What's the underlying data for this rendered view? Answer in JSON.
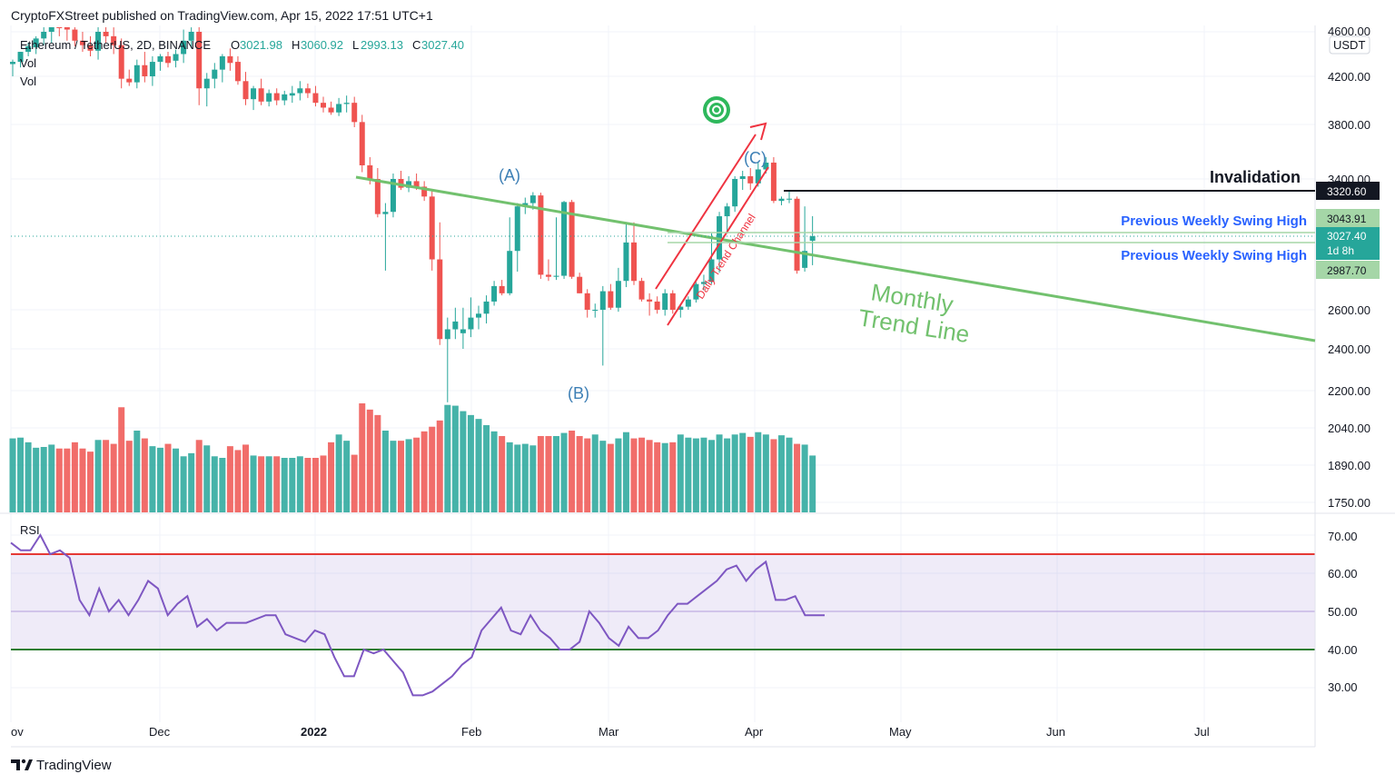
{
  "header": {
    "published": "CryptoFXStreet published on TradingView.com, Apr 15, 2022 17:51 UTC+1",
    "symbol": "Ethereum / TetherUS, 2D, BINANCE",
    "ohlc": {
      "o_label": "O",
      "o": "3021.98",
      "h_label": "H",
      "h": "3060.92",
      "l_label": "L",
      "l": "2993.13",
      "c_label": "C",
      "c": "3027.40"
    },
    "vol1": "Vol",
    "vol2": "Vol",
    "rsi_label": "RSI",
    "currency": "USDT"
  },
  "footer": {
    "brand": "TradingView",
    "logo": "tradingview-logo"
  },
  "price_axis": {
    "ticks": [
      "4600.00",
      "4200.00",
      "3800.00",
      "3400.00",
      "2600.00",
      "2400.00",
      "2200.00",
      "2040.00",
      "1890.00",
      "1750.00"
    ]
  },
  "rsi_axis": {
    "ticks": [
      "70.00",
      "60.00",
      "50.00",
      "40.00",
      "30.00"
    ]
  },
  "x_axis": {
    "ticks": [
      "ov",
      "Dec",
      "2022",
      "Feb",
      "Mar",
      "Apr",
      "May",
      "Jun",
      "Jul"
    ]
  },
  "badges": {
    "invalidation": "3320.60",
    "swing_high_1": "3043.91",
    "current": "3027.40",
    "countdown": "1d 8h",
    "swing_high_2": "2987.70"
  },
  "annotations": {
    "invalidation": "Invalidation",
    "swing_high_1": "Previous Weekly Swing High",
    "swing_high_2": "Previous Weekly Swing High",
    "monthly_1": "Monthly",
    "monthly_2": "Trend Line",
    "channel": "Daily Trend Channel",
    "wave_a": "(A)",
    "wave_b": "(B)",
    "wave_c": "(C)",
    "target_icon": "target-icon"
  },
  "colors": {
    "up": "#26a69a",
    "down": "#ef5350",
    "trend": "#72c16e",
    "channel": "#ef3340",
    "rsi": "#7e57c2"
  },
  "chart_data": {
    "type": "candlestick",
    "title": "Ethereum / TetherUS, 2D, BINANCE",
    "price_range": [
      1700,
      4700
    ],
    "rsi_range": [
      25,
      75
    ],
    "candles": [
      {
        "o": 4310,
        "h": 4350,
        "l": 4200,
        "c": 4330
      },
      {
        "o": 4330,
        "h": 4420,
        "l": 4280,
        "c": 4420
      },
      {
        "o": 4420,
        "h": 4500,
        "l": 4380,
        "c": 4470
      },
      {
        "o": 4460,
        "h": 4560,
        "l": 4400,
        "c": 4540
      },
      {
        "o": 4540,
        "h": 4660,
        "l": 4480,
        "c": 4600
      },
      {
        "o": 4600,
        "h": 4720,
        "l": 4500,
        "c": 4680
      },
      {
        "o": 4680,
        "h": 4730,
        "l": 4560,
        "c": 4660
      },
      {
        "o": 4660,
        "h": 4700,
        "l": 4520,
        "c": 4620
      },
      {
        "o": 4620,
        "h": 4680,
        "l": 4470,
        "c": 4520
      },
      {
        "o": 4520,
        "h": 4600,
        "l": 4420,
        "c": 4480
      },
      {
        "o": 4480,
        "h": 4560,
        "l": 4380,
        "c": 4430
      },
      {
        "o": 4430,
        "h": 4660,
        "l": 4350,
        "c": 4600
      },
      {
        "o": 4600,
        "h": 4720,
        "l": 4500,
        "c": 4560
      },
      {
        "o": 4560,
        "h": 4640,
        "l": 4400,
        "c": 4480
      },
      {
        "o": 4480,
        "h": 4540,
        "l": 4100,
        "c": 4180
      },
      {
        "o": 4180,
        "h": 4260,
        "l": 4120,
        "c": 4150
      },
      {
        "o": 4150,
        "h": 4350,
        "l": 4100,
        "c": 4300
      },
      {
        "o": 4300,
        "h": 4420,
        "l": 4150,
        "c": 4200
      },
      {
        "o": 4200,
        "h": 4380,
        "l": 4120,
        "c": 4330
      },
      {
        "o": 4330,
        "h": 4400,
        "l": 4250,
        "c": 4380
      },
      {
        "o": 4380,
        "h": 4420,
        "l": 4280,
        "c": 4320
      },
      {
        "o": 4340,
        "h": 4440,
        "l": 4280,
        "c": 4400
      },
      {
        "o": 4400,
        "h": 4620,
        "l": 4320,
        "c": 4520
      },
      {
        "o": 4520,
        "h": 4640,
        "l": 4450,
        "c": 4600
      },
      {
        "o": 4600,
        "h": 4650,
        "l": 3960,
        "c": 4100
      },
      {
        "o": 4100,
        "h": 4230,
        "l": 3950,
        "c": 4180
      },
      {
        "o": 4180,
        "h": 4320,
        "l": 4100,
        "c": 4260
      },
      {
        "o": 4260,
        "h": 4400,
        "l": 4150,
        "c": 4380
      },
      {
        "o": 4380,
        "h": 4450,
        "l": 4250,
        "c": 4320
      },
      {
        "o": 4330,
        "h": 4380,
        "l": 4130,
        "c": 4160
      },
      {
        "o": 4160,
        "h": 4240,
        "l": 3960,
        "c": 4010
      },
      {
        "o": 4010,
        "h": 4120,
        "l": 3920,
        "c": 4100
      },
      {
        "o": 4100,
        "h": 4180,
        "l": 3960,
        "c": 3990
      },
      {
        "o": 3990,
        "h": 4090,
        "l": 3950,
        "c": 4060
      },
      {
        "o": 4060,
        "h": 4100,
        "l": 3960,
        "c": 4000
      },
      {
        "o": 4000,
        "h": 4080,
        "l": 3960,
        "c": 4050
      },
      {
        "o": 4040,
        "h": 4120,
        "l": 3980,
        "c": 4060
      },
      {
        "o": 4060,
        "h": 4160,
        "l": 4000,
        "c": 4100
      },
      {
        "o": 4100,
        "h": 4140,
        "l": 4020,
        "c": 4060
      },
      {
        "o": 4060,
        "h": 4120,
        "l": 3950,
        "c": 3980
      },
      {
        "o": 3980,
        "h": 4030,
        "l": 3900,
        "c": 3940
      },
      {
        "o": 3940,
        "h": 3990,
        "l": 3880,
        "c": 3900
      },
      {
        "o": 3900,
        "h": 4020,
        "l": 3870,
        "c": 3970
      },
      {
        "o": 3970,
        "h": 4040,
        "l": 3900,
        "c": 3980
      },
      {
        "o": 3980,
        "h": 4030,
        "l": 3780,
        "c": 3820
      },
      {
        "o": 3820,
        "h": 3880,
        "l": 3450,
        "c": 3500
      },
      {
        "o": 3500,
        "h": 3560,
        "l": 3350,
        "c": 3400
      },
      {
        "o": 3400,
        "h": 3480,
        "l": 3050,
        "c": 3080
      },
      {
        "o": 3080,
        "h": 3180,
        "l": 2980,
        "c": 3100
      },
      {
        "o": 3100,
        "h": 3440,
        "l": 3050,
        "c": 3400
      },
      {
        "o": 3400,
        "h": 3460,
        "l": 3300,
        "c": 3320
      },
      {
        "o": 3320,
        "h": 3420,
        "l": 3280,
        "c": 3380
      },
      {
        "o": 3380,
        "h": 3440,
        "l": 3300,
        "c": 3330
      },
      {
        "o": 3330,
        "h": 3380,
        "l": 3200,
        "c": 3240
      },
      {
        "o": 3240,
        "h": 3290,
        "l": 2980,
        "c": 3000
      },
      {
        "o": 3000,
        "h": 3040,
        "l": 2420,
        "c": 2450
      },
      {
        "o": 2450,
        "h": 2560,
        "l": 2150,
        "c": 2500
      },
      {
        "o": 2500,
        "h": 2620,
        "l": 2450,
        "c": 2540
      },
      {
        "o": 2480,
        "h": 2620,
        "l": 2400,
        "c": 2500
      },
      {
        "o": 2500,
        "h": 2720,
        "l": 2460,
        "c": 2560
      },
      {
        "o": 2560,
        "h": 2640,
        "l": 2500,
        "c": 2580
      },
      {
        "o": 2580,
        "h": 2740,
        "l": 2530,
        "c": 2680
      },
      {
        "o": 2680,
        "h": 2880,
        "l": 2640,
        "c": 2830
      },
      {
        "o": 2830,
        "h": 2890,
        "l": 2740,
        "c": 2760
      },
      {
        "o": 2760,
        "h": 3050,
        "l": 2740,
        "c": 3010
      },
      {
        "o": 3010,
        "h": 3180,
        "l": 2970,
        "c": 3150
      },
      {
        "o": 3150,
        "h": 3230,
        "l": 3080,
        "c": 3180
      },
      {
        "o": 3180,
        "h": 3280,
        "l": 3120,
        "c": 3250
      },
      {
        "o": 3250,
        "h": 3275,
        "l": 2900,
        "c": 2940
      },
      {
        "o": 2940,
        "h": 3000,
        "l": 2880,
        "c": 2920
      },
      {
        "o": 2920,
        "h": 3050,
        "l": 2890,
        "c": 2930
      },
      {
        "o": 2930,
        "h": 3200,
        "l": 2900,
        "c": 3190
      },
      {
        "o": 3190,
        "h": 3210,
        "l": 2900,
        "c": 2920
      },
      {
        "o": 2920,
        "h": 2960,
        "l": 2760,
        "c": 2760
      },
      {
        "o": 2760,
        "h": 2800,
        "l": 2560,
        "c": 2600
      },
      {
        "o": 2600,
        "h": 2660,
        "l": 2560,
        "c": 2600
      },
      {
        "o": 2600,
        "h": 2830,
        "l": 2320,
        "c": 2780
      },
      {
        "o": 2780,
        "h": 2850,
        "l": 2600,
        "c": 2620
      },
      {
        "o": 2620,
        "h": 2990,
        "l": 2590,
        "c": 2880
      },
      {
        "o": 2880,
        "h": 3040,
        "l": 2820,
        "c": 3020
      },
      {
        "o": 3020,
        "h": 3040,
        "l": 2840,
        "c": 2880
      },
      {
        "o": 2880,
        "h": 2910,
        "l": 2680,
        "c": 2700
      },
      {
        "o": 2700,
        "h": 2760,
        "l": 2570,
        "c": 2680
      },
      {
        "o": 2680,
        "h": 2730,
        "l": 2580,
        "c": 2600
      },
      {
        "o": 2600,
        "h": 2800,
        "l": 2570,
        "c": 2760
      },
      {
        "o": 2760,
        "h": 2790,
        "l": 2580,
        "c": 2600
      },
      {
        "o": 2600,
        "h": 2650,
        "l": 2560,
        "c": 2630
      },
      {
        "o": 2630,
        "h": 2730,
        "l": 2600,
        "c": 2700
      },
      {
        "o": 2700,
        "h": 2870,
        "l": 2670,
        "c": 2850
      },
      {
        "o": 2850,
        "h": 2940,
        "l": 2790,
        "c": 2870
      },
      {
        "o": 2870,
        "h": 3030,
        "l": 2850,
        "c": 3000
      },
      {
        "o": 3000,
        "h": 3100,
        "l": 2960,
        "c": 3060
      },
      {
        "o": 3060,
        "h": 3180,
        "l": 3030,
        "c": 3150
      },
      {
        "o": 3150,
        "h": 3420,
        "l": 3100,
        "c": 3400
      },
      {
        "o": 3400,
        "h": 3460,
        "l": 3300,
        "c": 3420
      },
      {
        "o": 3420,
        "h": 3480,
        "l": 3300,
        "c": 3360
      },
      {
        "o": 3360,
        "h": 3520,
        "l": 3330,
        "c": 3470
      },
      {
        "o": 3470,
        "h": 3560,
        "l": 3440,
        "c": 3520
      },
      {
        "o": 3520,
        "h": 3560,
        "l": 3180,
        "c": 3200
      },
      {
        "o": 3200,
        "h": 3240,
        "l": 3160,
        "c": 3220
      },
      {
        "o": 3220,
        "h": 3300,
        "l": 3180,
        "c": 3220
      },
      {
        "o": 3220,
        "h": 3240,
        "l": 2950,
        "c": 2980
      },
      {
        "o": 2990,
        "h": 3150,
        "l": 2970,
        "c": 3010
      },
      {
        "o": 3021.98,
        "h": 3060.92,
        "l": 2993.13,
        "c": 3027.4
      }
    ],
    "volume": [
      950,
      960,
      900,
      830,
      840,
      870,
      820,
      820,
      900,
      820,
      780,
      930,
      930,
      880,
      1350,
      920,
      1050,
      950,
      850,
      830,
      880,
      820,
      720,
      760,
      930,
      860,
      720,
      700,
      850,
      800,
      870,
      730,
      720,
      720,
      720,
      700,
      700,
      720,
      700,
      700,
      730,
      900,
      1000,
      920,
      740,
      1400,
      1320,
      1250,
      1050,
      920,
      920,
      940,
      960,
      1040,
      1100,
      1180,
      1380,
      1370,
      1300,
      1250,
      1200,
      1120,
      1040,
      980,
      900,
      870,
      880,
      860,
      980,
      980,
      980,
      1020,
      1050,
      980,
      950,
      1000,
      920,
      880,
      950,
      1030,
      950,
      960,
      930,
      900,
      890,
      900,
      1000,
      960,
      950,
      960,
      930,
      1000,
      950,
      1000,
      1020,
      970,
      1030,
      1000,
      940,
      990,
      960,
      880,
      870,
      730
    ]
  }
}
